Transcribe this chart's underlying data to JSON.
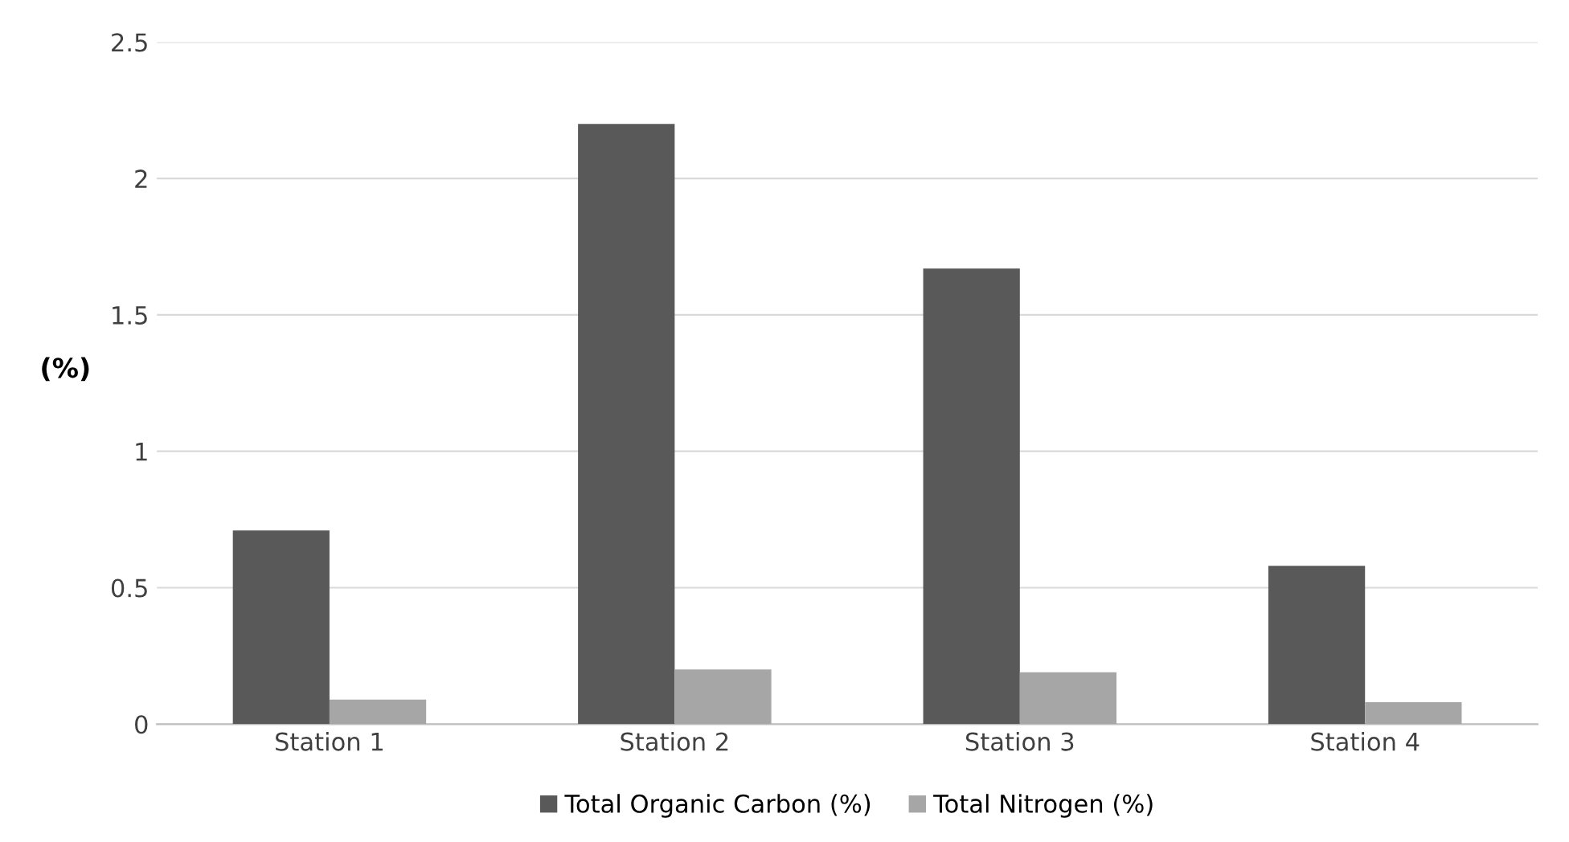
{
  "chart_data": {
    "type": "bar",
    "ylabel": "(%)",
    "categories": [
      "Station 1",
      "Station 2",
      "Station 3",
      "Station 4"
    ],
    "series": [
      {
        "name": "Total Organic Carbon (%)",
        "color": "#595959",
        "values": [
          0.71,
          2.2,
          1.67,
          0.58
        ]
      },
      {
        "name": "Total Nitrogen (%)",
        "color": "#a6a6a6",
        "values": [
          0.09,
          0.2,
          0.19,
          0.08
        ]
      }
    ],
    "ylim": [
      0,
      2.5
    ],
    "yticks": [
      0,
      0.5,
      1,
      1.5,
      2,
      2.5
    ],
    "grid": "y",
    "legend": "bottom"
  }
}
